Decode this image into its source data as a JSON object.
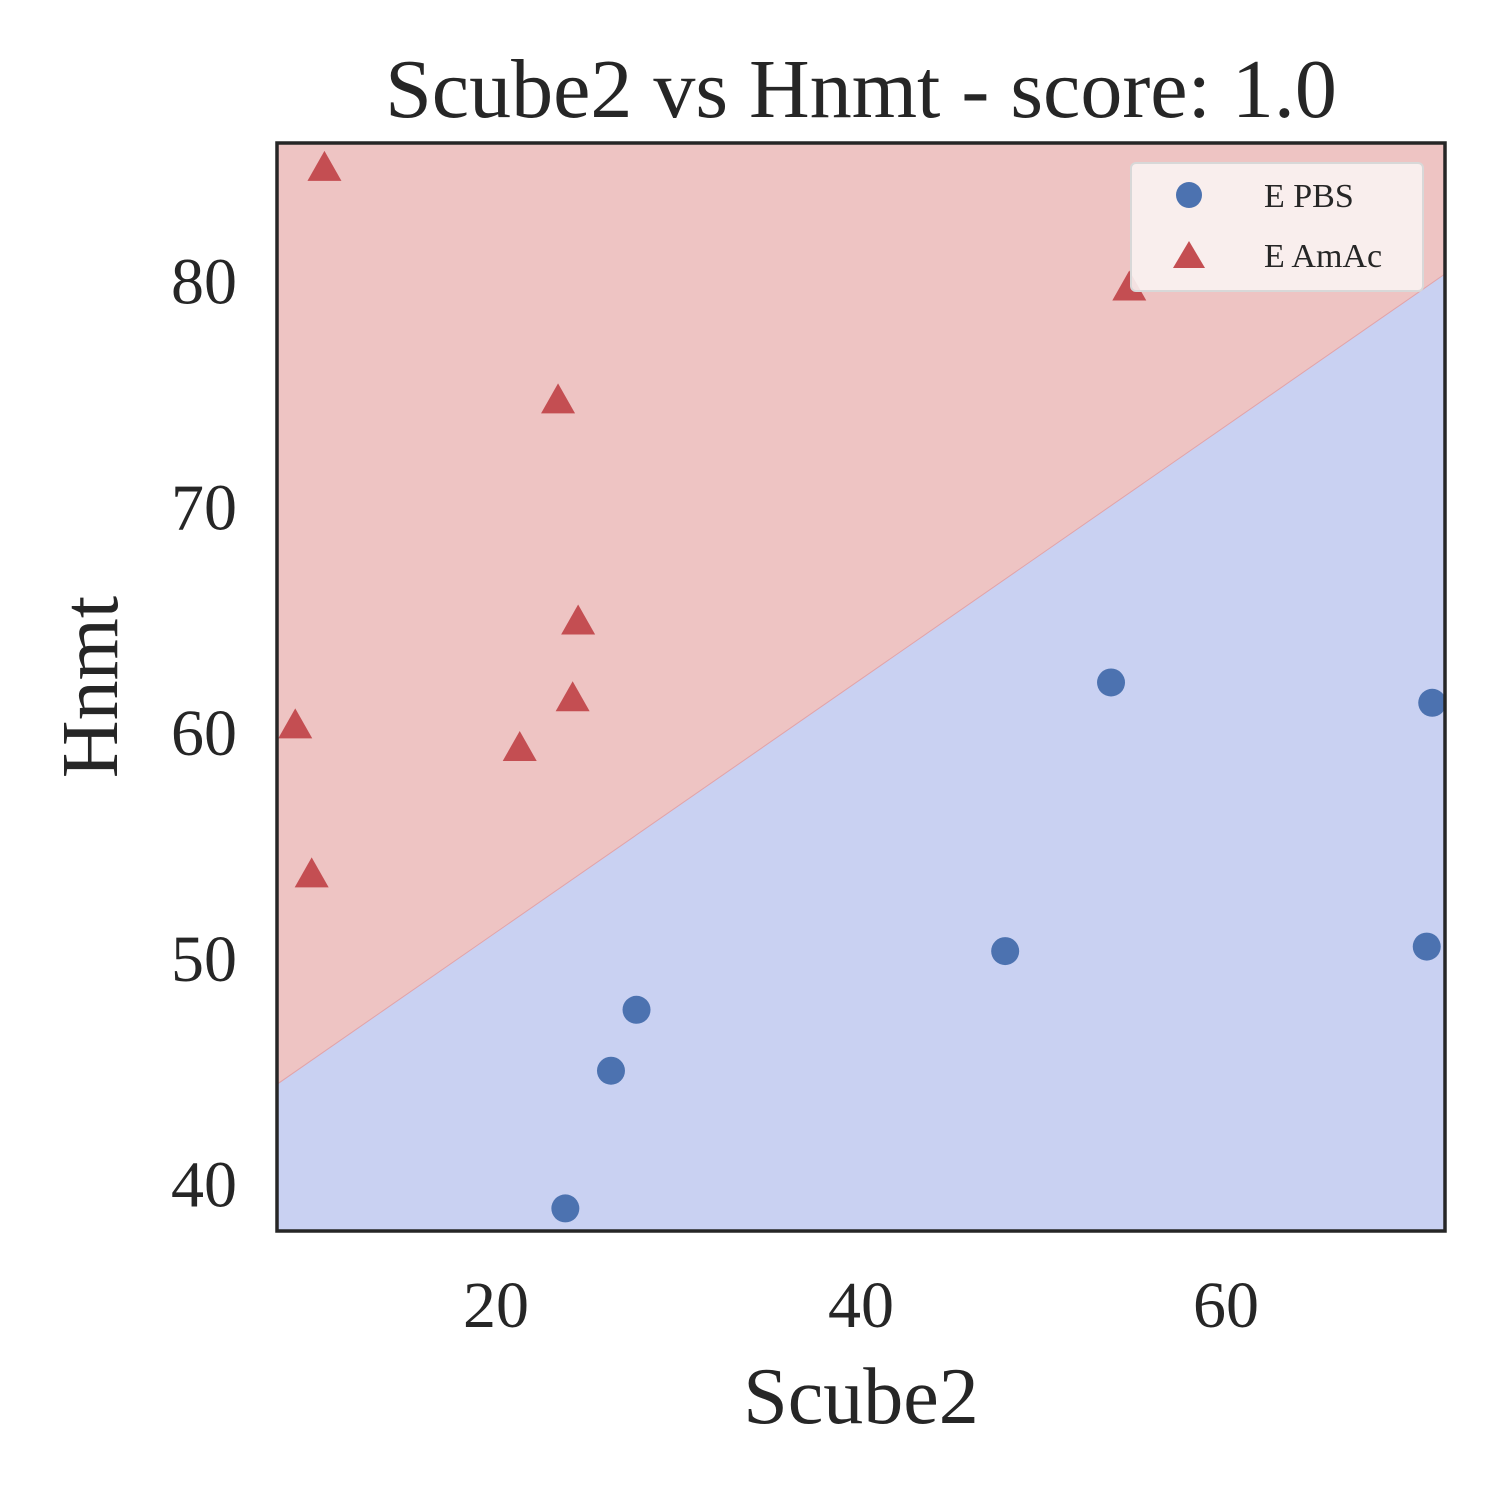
{
  "chart_data": {
    "type": "scatter",
    "title": "Scube2 vs Hnmt - score: 1.0",
    "xlabel": "Scube2",
    "ylabel": "Hnmt",
    "xlim": [
      8,
      72
    ],
    "ylim": [
      37.9,
      86.1
    ],
    "xticks": [
      20,
      40,
      60
    ],
    "yticks": [
      40,
      50,
      60,
      70,
      80
    ],
    "grid": false,
    "legend_position": "top-right",
    "colors": {
      "region_amac": "#eec4c3",
      "region_pbs": "#c9d1f2",
      "boundary": "#e2a3a8",
      "series_pbs": "#4c72b0",
      "series_amac": "#c44e52",
      "axes": "#262626"
    },
    "decision_boundary": {
      "description": "Linear boundary separating classes",
      "points": [
        [
          8,
          44.4
        ],
        [
          72,
          80.3
        ]
      ],
      "above_class": "E AmAc",
      "below_class": "E PBS"
    },
    "series": [
      {
        "name": "E PBS",
        "marker": "circle",
        "points": [
          [
            23.8,
            38.9
          ],
          [
            26.3,
            45.0
          ],
          [
            27.7,
            47.7
          ],
          [
            47.9,
            50.3
          ],
          [
            53.7,
            62.2
          ],
          [
            71.0,
            50.5
          ],
          [
            71.3,
            61.3
          ]
        ]
      },
      {
        "name": "E AmAc",
        "marker": "triangle",
        "points": [
          [
            9.0,
            60.3
          ],
          [
            9.9,
            53.7
          ],
          [
            10.6,
            85.0
          ],
          [
            21.3,
            59.3
          ],
          [
            23.4,
            74.7
          ],
          [
            24.5,
            64.9
          ],
          [
            24.2,
            61.5
          ],
          [
            54.7,
            79.7
          ]
        ]
      }
    ]
  }
}
